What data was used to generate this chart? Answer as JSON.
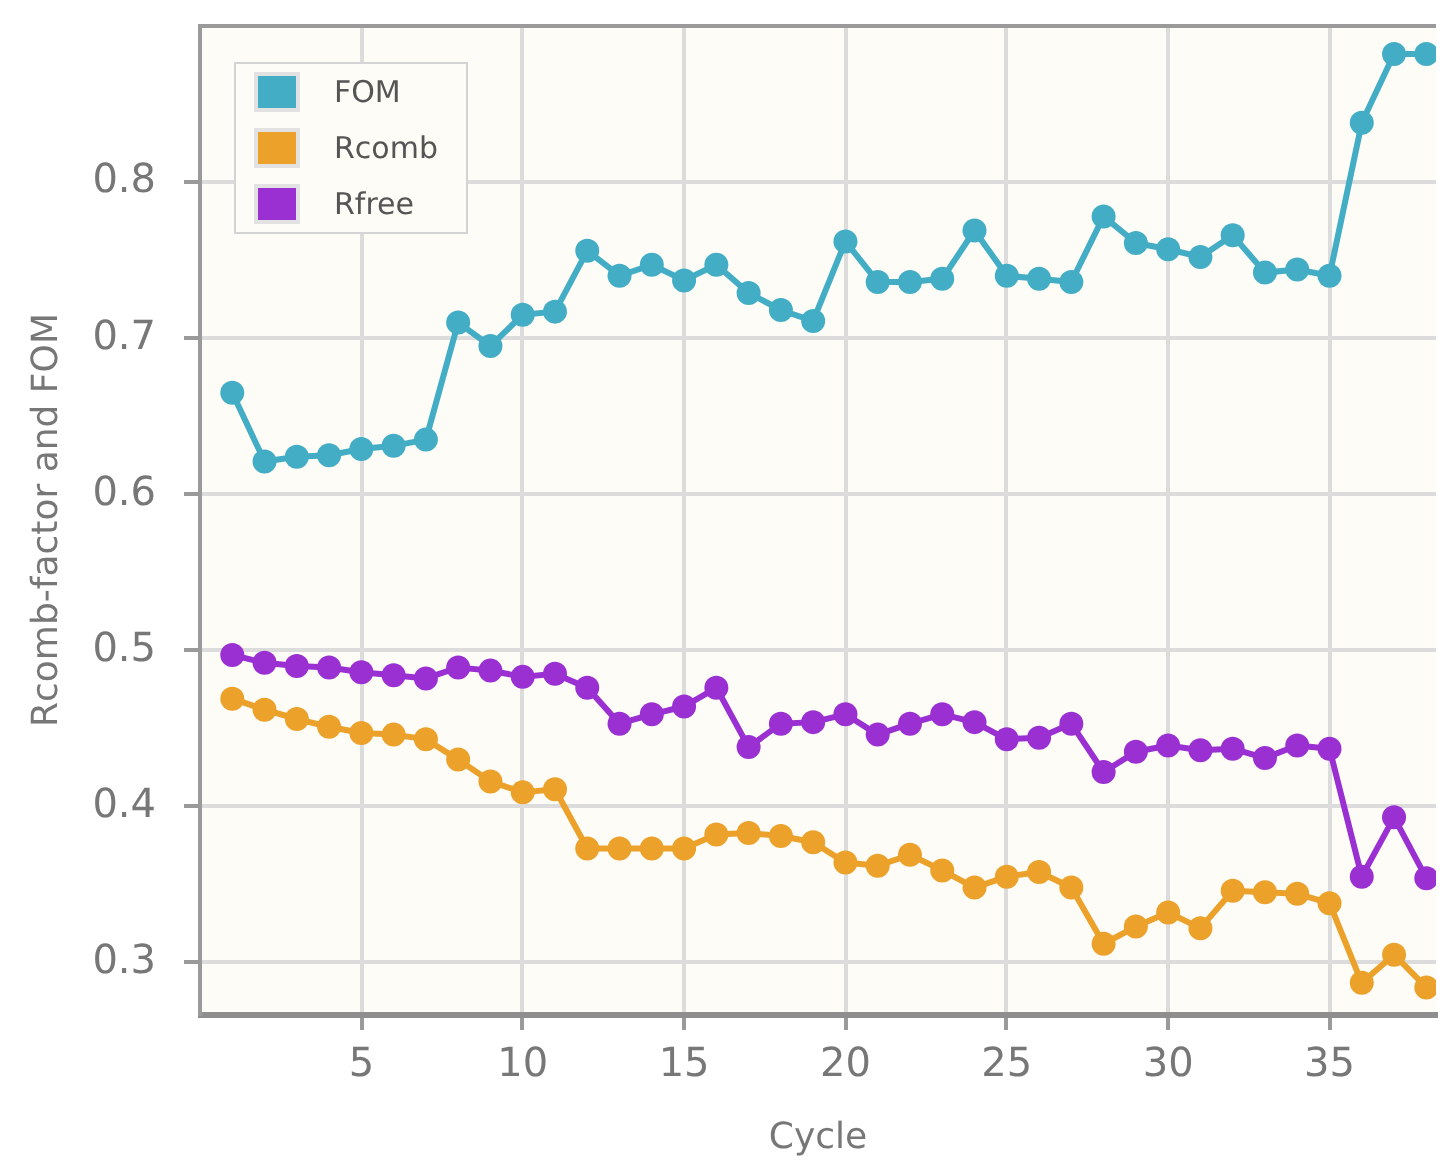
{
  "chart_data": {
    "type": "line",
    "xlabel": "Cycle",
    "ylabel": "Rcomb-factor and FOM",
    "x": [
      1,
      2,
      3,
      4,
      5,
      6,
      7,
      8,
      9,
      10,
      11,
      12,
      13,
      14,
      15,
      16,
      17,
      18,
      19,
      20,
      21,
      22,
      23,
      24,
      25,
      26,
      27,
      28,
      29,
      30,
      31,
      32,
      33,
      34,
      35,
      36,
      37,
      38
    ],
    "series": [
      {
        "name": "FOM",
        "color": "#42adc4",
        "values": [
          0.665,
          0.621,
          0.624,
          0.625,
          0.629,
          0.631,
          0.635,
          0.71,
          0.695,
          0.715,
          0.717,
          0.756,
          0.74,
          0.747,
          0.737,
          0.747,
          0.729,
          0.718,
          0.711,
          0.762,
          0.736,
          0.736,
          0.738,
          0.769,
          0.74,
          0.738,
          0.736,
          0.778,
          0.761,
          0.757,
          0.752,
          0.766,
          0.742,
          0.744,
          0.74,
          0.838,
          0.882,
          0.882
        ]
      },
      {
        "name": "Rcomb",
        "color": "#eba12a",
        "values": [
          0.469,
          0.462,
          0.456,
          0.451,
          0.447,
          0.446,
          0.443,
          0.43,
          0.416,
          0.409,
          0.411,
          0.373,
          0.373,
          0.373,
          0.373,
          0.382,
          0.383,
          0.381,
          0.377,
          0.364,
          0.362,
          0.369,
          0.359,
          0.348,
          0.355,
          0.358,
          0.348,
          0.312,
          0.323,
          0.332,
          0.322,
          0.346,
          0.345,
          0.344,
          0.338,
          0.287,
          0.305,
          0.284
        ]
      },
      {
        "name": "Rfree",
        "color": "#9a2fd2",
        "values": [
          0.497,
          0.492,
          0.49,
          0.489,
          0.486,
          0.484,
          0.482,
          0.489,
          0.487,
          0.483,
          0.485,
          0.476,
          0.453,
          0.459,
          0.464,
          0.476,
          0.438,
          0.453,
          0.454,
          0.459,
          0.446,
          0.453,
          0.459,
          0.454,
          0.443,
          0.444,
          0.453,
          0.422,
          0.435,
          0.439,
          0.436,
          0.437,
          0.431,
          0.439,
          0.437,
          0.355,
          0.393,
          0.354
        ]
      }
    ],
    "xlim": [
      0,
      38.3
    ],
    "ylim": [
      0.267,
      0.9
    ],
    "xticks": [
      5,
      10,
      15,
      20,
      25,
      30,
      35
    ],
    "yticks": [
      0.3,
      0.4,
      0.5,
      0.6,
      0.7,
      0.8
    ],
    "grid": true,
    "legend": "top left",
    "marker": "circle",
    "line_style": "solid"
  }
}
